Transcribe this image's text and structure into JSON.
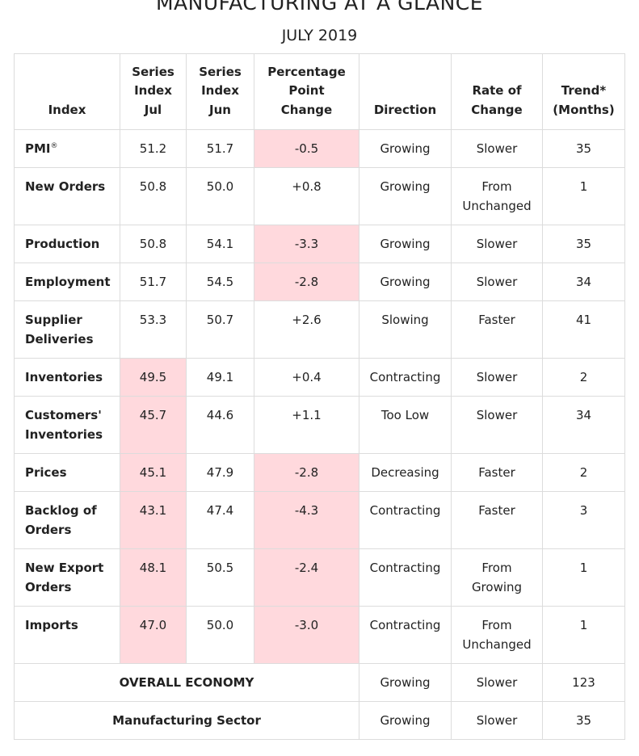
{
  "title": "MANUFACTURING AT A GLANCE",
  "subtitle": "JULY 2019",
  "headers": {
    "index": "Index",
    "series_jul": [
      "Series",
      "Index",
      "Jul"
    ],
    "series_jun": [
      "Series",
      "Index",
      "Jun"
    ],
    "pp_change": [
      "Percentage",
      "Point",
      "Change"
    ],
    "direction": "Direction",
    "rate": [
      "Rate of",
      "Change"
    ],
    "trend": [
      "Trend*",
      "(Months)"
    ]
  },
  "rows": [
    {
      "index": [
        "PMI"
      ],
      "sup": "®",
      "jul": "51.2",
      "jun": "51.7",
      "change": "-0.5",
      "direction": "Growing",
      "rate": [
        "Slower"
      ],
      "trend": "35"
    },
    {
      "index": [
        "New Orders"
      ],
      "jul": "50.8",
      "jun": "50.0",
      "change": "+0.8",
      "direction": "Growing",
      "rate": [
        "From",
        "Unchanged"
      ],
      "trend": "1"
    },
    {
      "index": [
        "Production"
      ],
      "jul": "50.8",
      "jun": "54.1",
      "change": "-3.3",
      "direction": "Growing",
      "rate": [
        "Slower"
      ],
      "trend": "35"
    },
    {
      "index": [
        "Employment"
      ],
      "jul": "51.7",
      "jun": "54.5",
      "change": "-2.8",
      "direction": "Growing",
      "rate": [
        "Slower"
      ],
      "trend": "34"
    },
    {
      "index": [
        "Supplier",
        "Deliveries"
      ],
      "jul": "53.3",
      "jun": "50.7",
      "change": "+2.6",
      "direction": "Slowing",
      "rate": [
        "Faster"
      ],
      "trend": "41"
    },
    {
      "index": [
        "Inventories"
      ],
      "jul": "49.5",
      "jun": "49.1",
      "change": "+0.4",
      "direction": "Contracting",
      "rate": [
        "Slower"
      ],
      "trend": "2"
    },
    {
      "index": [
        "Customers'",
        "Inventories"
      ],
      "jul": "45.7",
      "jun": "44.6",
      "change": "+1.1",
      "direction": "Too Low",
      "rate": [
        "Slower"
      ],
      "trend": "34"
    },
    {
      "index": [
        "Prices"
      ],
      "jul": "45.1",
      "jun": "47.9",
      "change": "-2.8",
      "direction": "Decreasing",
      "rate": [
        "Faster"
      ],
      "trend": "2"
    },
    {
      "index": [
        "Backlog of",
        "Orders"
      ],
      "jul": "43.1",
      "jun": "47.4",
      "change": "-4.3",
      "direction": "Contracting",
      "rate": [
        "Faster"
      ],
      "trend": "3"
    },
    {
      "index": [
        "New Export",
        "Orders"
      ],
      "jul": "48.1",
      "jun": "50.5",
      "change": "-2.4",
      "direction": "Contracting",
      "rate": [
        "From",
        "Growing"
      ],
      "trend": "1"
    },
    {
      "index": [
        "Imports"
      ],
      "jul": "47.0",
      "jun": "50.0",
      "change": "-3.0",
      "direction": "Contracting",
      "rate": [
        "From",
        "Unchanged"
      ],
      "trend": "1"
    }
  ],
  "footer": [
    {
      "label": "OVERALL ECONOMY",
      "direction": "Growing",
      "rate": "Slower",
      "trend": "123"
    },
    {
      "label": "Manufacturing Sector",
      "direction": "Growing",
      "rate": "Slower",
      "trend": "35"
    }
  ],
  "colors": {
    "negative_highlight": "#ffd9dd",
    "border": "#dcdcdc"
  }
}
